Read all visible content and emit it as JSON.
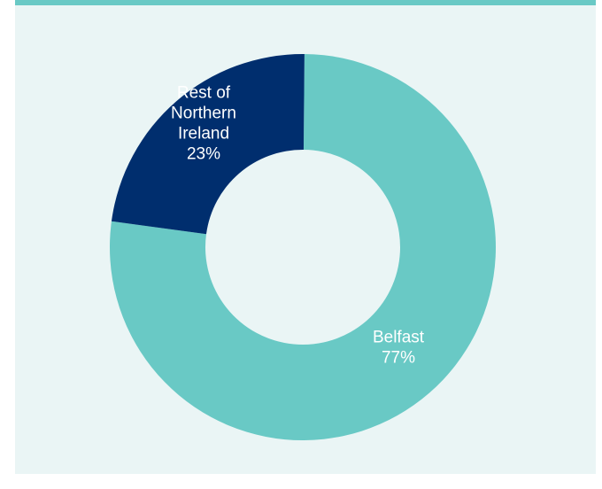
{
  "colors": {
    "panel_background": "#eaf5f5",
    "top_rule": "#69c9c5"
  },
  "chart_data": {
    "type": "pie",
    "variant": "donut",
    "title": "",
    "slices": [
      {
        "label_lines": [
          "Belfast",
          "77%"
        ],
        "value": 77,
        "color": "#69c9c5",
        "label_color": "#ffffff"
      },
      {
        "label_lines": [
          "Rest of",
          "Northern",
          "Ireland",
          "23%"
        ],
        "value": 23,
        "color": "#002e6e",
        "label_color": "#ffffff"
      }
    ],
    "legend": "none"
  }
}
